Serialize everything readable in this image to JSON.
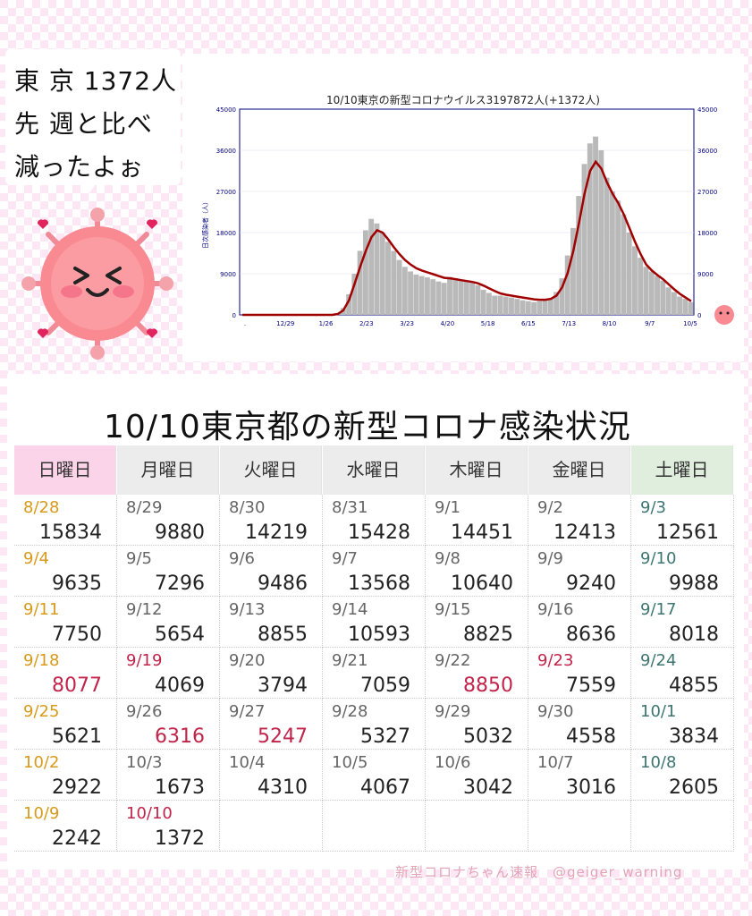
{
  "bubble": {
    "line1": "東 京 1372人",
    "line2": "先 週と比べ",
    "line3": "減ったよぉ"
  },
  "chart_data": {
    "type": "bar",
    "title": "10/10東京の新型コロナウイルス3197872人(+1372人)",
    "ylabel": "日次感染者（人）",
    "ylim": [
      0,
      45000
    ],
    "yticks": [
      0,
      9000,
      18000,
      27000,
      36000,
      45000
    ],
    "xtick_labels": [
      ".",
      "12/29",
      "1/26",
      "2/23",
      "3/23",
      "4/20",
      "5/18",
      "6/15",
      "7/13",
      "8/10",
      "9/7",
      "10/5"
    ],
    "series": [
      {
        "type": "bar",
        "values": [
          0,
          0,
          0,
          0,
          0,
          0,
          0,
          0,
          0,
          0,
          0,
          0,
          0,
          0,
          0,
          0,
          0,
          300,
          1500,
          4500,
          9000,
          14000,
          18500,
          21000,
          20000,
          18000,
          16000,
          14000,
          12000,
          10500,
          9500,
          8800,
          8500,
          8200,
          7800,
          7300,
          7000,
          8300,
          8000,
          7600,
          7400,
          7200,
          6500,
          5500,
          4800,
          4200,
          4200,
          4000,
          3800,
          3500,
          3200,
          3000,
          2800,
          3000,
          3200,
          3600,
          5000,
          8000,
          13000,
          19000,
          26000,
          33000,
          37500,
          39000,
          36000,
          30000,
          27000,
          25000,
          22000,
          18000,
          15000,
          12500,
          10500,
          9500,
          8500,
          7500,
          6000,
          5000,
          4000,
          3500,
          2800
        ]
      },
      {
        "type": "line",
        "values": [
          0,
          0,
          0,
          0,
          0,
          0,
          0,
          0,
          0,
          0,
          0,
          0,
          0,
          0,
          0,
          0,
          0,
          200,
          1000,
          3200,
          6800,
          10500,
          14000,
          17000,
          18500,
          18000,
          16500,
          14800,
          13300,
          12000,
          11000,
          10200,
          9700,
          9300,
          8900,
          8500,
          8100,
          8000,
          7800,
          7600,
          7400,
          7200,
          6900,
          6400,
          5800,
          5200,
          4700,
          4400,
          4200,
          4000,
          3800,
          3600,
          3400,
          3300,
          3300,
          3500,
          4200,
          6000,
          9200,
          14000,
          20000,
          26500,
          31500,
          33500,
          32000,
          29000,
          26500,
          24500,
          22000,
          19000,
          16000,
          13300,
          11000,
          9700,
          8700,
          7800,
          6700,
          5600,
          4600,
          3800,
          3000
        ]
      }
    ]
  },
  "table": {
    "title": "10/10東京都の新型コロナ感染状況",
    "header_colors": [
      "#fcd4ea",
      "#ececec",
      "#ececec",
      "#ececec",
      "#ececec",
      "#ececec",
      "#dfeedd"
    ],
    "headers": [
      "日曜日",
      "月曜日",
      "火曜日",
      "水曜日",
      "木曜日",
      "金曜日",
      "土曜日"
    ],
    "rows": [
      [
        {
          "d": "8/28",
          "n": "15834",
          "dc": "#d79a1b"
        },
        {
          "d": "8/29",
          "n": "9880"
        },
        {
          "d": "8/30",
          "n": "14219"
        },
        {
          "d": "8/31",
          "n": "15428"
        },
        {
          "d": "9/1",
          "n": "14451"
        },
        {
          "d": "9/2",
          "n": "12413"
        },
        {
          "d": "9/3",
          "n": "12561",
          "dc": "#3d7570"
        }
      ],
      [
        {
          "d": "9/4",
          "n": "9635",
          "dc": "#d79a1b"
        },
        {
          "d": "9/5",
          "n": "7296"
        },
        {
          "d": "9/6",
          "n": "9486"
        },
        {
          "d": "9/7",
          "n": "13568"
        },
        {
          "d": "9/8",
          "n": "10640"
        },
        {
          "d": "9/9",
          "n": "9240"
        },
        {
          "d": "9/10",
          "n": "9988",
          "dc": "#3d7570"
        }
      ],
      [
        {
          "d": "9/11",
          "n": "7750",
          "dc": "#d79a1b"
        },
        {
          "d": "9/12",
          "n": "5654"
        },
        {
          "d": "9/13",
          "n": "8855"
        },
        {
          "d": "9/14",
          "n": "10593"
        },
        {
          "d": "9/15",
          "n": "8825"
        },
        {
          "d": "9/16",
          "n": "8636"
        },
        {
          "d": "9/17",
          "n": "8018",
          "dc": "#3d7570"
        }
      ],
      [
        {
          "d": "9/18",
          "n": "8077",
          "dc": "#d79a1b",
          "nc": "#c0244a"
        },
        {
          "d": "9/19",
          "n": "4069",
          "dc": "#c0244a"
        },
        {
          "d": "9/20",
          "n": "3794"
        },
        {
          "d": "9/21",
          "n": "7059"
        },
        {
          "d": "9/22",
          "n": "8850",
          "nc": "#c0244a"
        },
        {
          "d": "9/23",
          "n": "7559",
          "dc": "#c0244a"
        },
        {
          "d": "9/24",
          "n": "4855",
          "dc": "#3d7570"
        }
      ],
      [
        {
          "d": "9/25",
          "n": "5621",
          "dc": "#d79a1b"
        },
        {
          "d": "9/26",
          "n": "6316",
          "nc": "#c0244a"
        },
        {
          "d": "9/27",
          "n": "5247",
          "nc": "#c0244a"
        },
        {
          "d": "9/28",
          "n": "5327"
        },
        {
          "d": "9/29",
          "n": "5032"
        },
        {
          "d": "9/30",
          "n": "4558"
        },
        {
          "d": "10/1",
          "n": "3834",
          "dc": "#3d7570"
        }
      ],
      [
        {
          "d": "10/2",
          "n": "2922",
          "dc": "#d79a1b"
        },
        {
          "d": "10/3",
          "n": "1673"
        },
        {
          "d": "10/4",
          "n": "4310"
        },
        {
          "d": "10/5",
          "n": "4067"
        },
        {
          "d": "10/6",
          "n": "3042"
        },
        {
          "d": "10/7",
          "n": "3016"
        },
        {
          "d": "10/8",
          "n": "2605",
          "dc": "#3d7570"
        }
      ],
      [
        {
          "d": "10/9",
          "n": "2242",
          "dc": "#d79a1b"
        },
        {
          "d": "10/10",
          "n": "1372",
          "dc": "#c0244a"
        },
        {
          "d": "",
          "n": ""
        },
        {
          "d": "",
          "n": ""
        },
        {
          "d": "",
          "n": ""
        },
        {
          "d": "",
          "n": ""
        },
        {
          "d": "",
          "n": ""
        }
      ]
    ]
  },
  "footer": {
    "text": "新型コロナちゃん速報　@geiger_warning"
  }
}
